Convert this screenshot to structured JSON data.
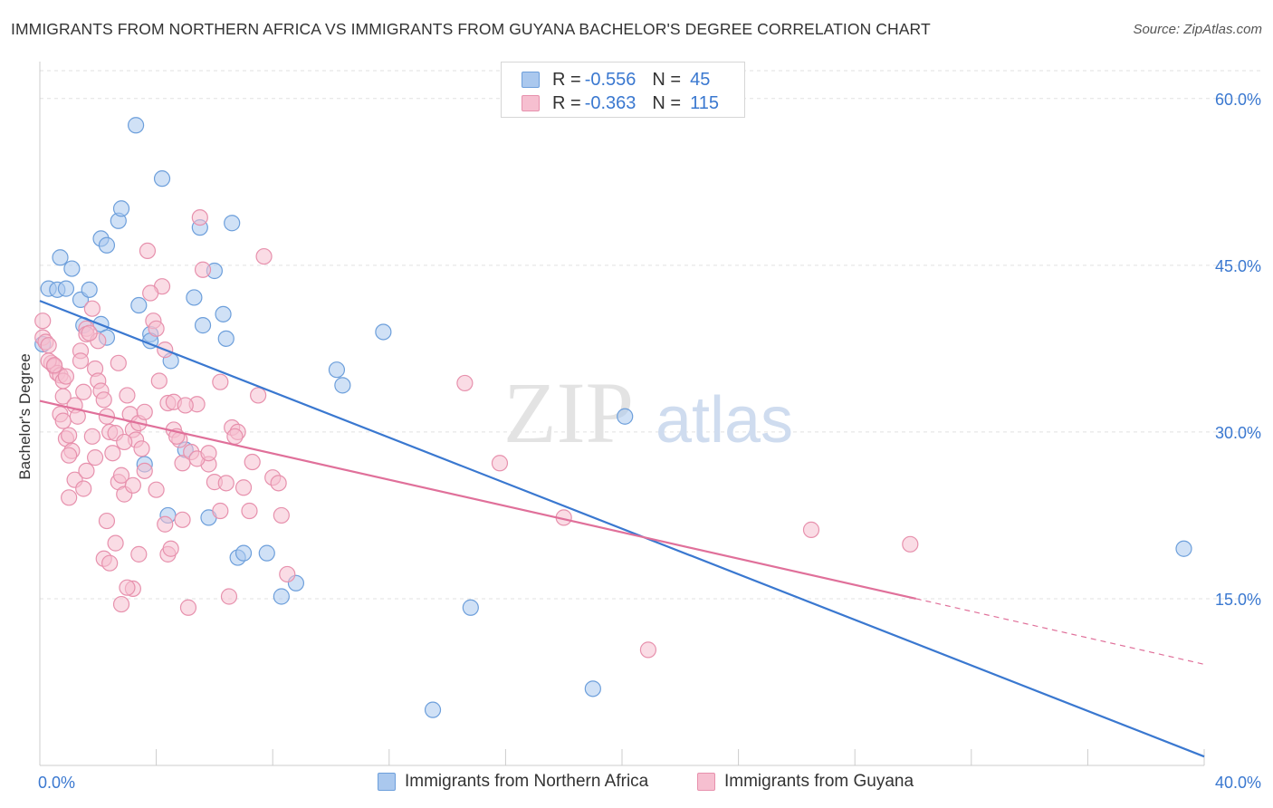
{
  "header": {
    "title": "IMMIGRANTS FROM NORTHERN AFRICA VS IMMIGRANTS FROM GUYANA BACHELOR'S DEGREE CORRELATION CHART",
    "source": "Source: ZipAtlas.com"
  },
  "watermark": {
    "zip": "ZIP",
    "atlas": "atlas"
  },
  "legend": {
    "r_label": "R =",
    "n_label": "N =",
    "rows": [
      {
        "r": "-0.556",
        "n": "45",
        "color": "#aac8ee",
        "border": "#6d9fdb"
      },
      {
        "r": "-0.363",
        "n": "115",
        "color": "#f6bfd0",
        "border": "#e791ad"
      }
    ]
  },
  "chart_data": {
    "type": "scatter",
    "title": "IMMIGRANTS FROM NORTHERN AFRICA VS IMMIGRANTS FROM GUYANA BACHELOR'S DEGREE CORRELATION CHART",
    "xlabel": "",
    "ylabel": "Bachelor's Degree",
    "xlim": [
      0,
      40
    ],
    "ylim": [
      0,
      63
    ],
    "x_tick_labels": [
      "0.0%",
      "40.0%"
    ],
    "y_ticks": [
      15,
      30,
      45,
      60
    ],
    "y_tick_labels": [
      "15.0%",
      "30.0%",
      "45.0%",
      "60.0%"
    ],
    "grid": true,
    "legend_position": "top-center",
    "series": [
      {
        "name": "Immigrants from Northern Africa",
        "color": "#6d9fdb",
        "fill": "#aac8ee",
        "line_color": "#3a78d0",
        "trend": {
          "x": [
            0,
            40
          ],
          "y": [
            41.8,
            0.8
          ]
        },
        "points": [
          [
            0.3,
            42.9
          ],
          [
            0.6,
            42.8
          ],
          [
            0.7,
            45.7
          ],
          [
            0.9,
            42.9
          ],
          [
            1.1,
            44.7
          ],
          [
            1.4,
            41.9
          ],
          [
            1.7,
            42.8
          ],
          [
            1.5,
            39.6
          ],
          [
            2.1,
            39.7
          ],
          [
            2.3,
            38.5
          ],
          [
            2.1,
            47.4
          ],
          [
            2.3,
            46.8
          ],
          [
            2.7,
            49.0
          ],
          [
            2.8,
            50.1
          ],
          [
            3.3,
            57.6
          ],
          [
            3.4,
            41.4
          ],
          [
            3.8,
            38.8
          ],
          [
            3.8,
            38.2
          ],
          [
            4.2,
            52.8
          ],
          [
            4.5,
            36.4
          ],
          [
            5.3,
            42.1
          ],
          [
            5.5,
            48.4
          ],
          [
            5.6,
            39.6
          ],
          [
            6.0,
            44.5
          ],
          [
            6.3,
            40.6
          ],
          [
            6.4,
            38.4
          ],
          [
            6.6,
            48.8
          ],
          [
            3.6,
            27.1
          ],
          [
            4.4,
            22.5
          ],
          [
            5.0,
            28.4
          ],
          [
            5.8,
            22.3
          ],
          [
            6.8,
            18.7
          ],
          [
            7.0,
            19.1
          ],
          [
            7.8,
            19.1
          ],
          [
            8.3,
            15.2
          ],
          [
            8.8,
            16.4
          ],
          [
            10.2,
            35.6
          ],
          [
            10.4,
            34.2
          ],
          [
            11.8,
            39.0
          ],
          [
            14.8,
            14.2
          ],
          [
            13.5,
            5.0
          ],
          [
            19.0,
            6.9
          ],
          [
            20.1,
            31.4
          ],
          [
            39.3,
            19.5
          ],
          [
            0.1,
            37.9
          ]
        ]
      },
      {
        "name": "Immigrants from Guyana",
        "color": "#e791ad",
        "fill": "#f6bfd0",
        "line_color": "#e0709a",
        "trend": {
          "x": [
            0,
            30.1
          ],
          "y": [
            32.8,
            15.0
          ]
        },
        "trend_dashed": {
          "x": [
            30.1,
            40
          ],
          "y": [
            15.0,
            9.1
          ]
        },
        "points": [
          [
            0.1,
            40.0
          ],
          [
            0.1,
            38.5
          ],
          [
            0.2,
            38.1
          ],
          [
            0.3,
            37.8
          ],
          [
            0.4,
            36.2
          ],
          [
            0.5,
            35.9
          ],
          [
            0.6,
            35.3
          ],
          [
            0.7,
            35.1
          ],
          [
            0.8,
            34.6
          ],
          [
            0.8,
            33.2
          ],
          [
            0.7,
            31.6
          ],
          [
            0.8,
            31.0
          ],
          [
            0.9,
            29.4
          ],
          [
            1.0,
            29.7
          ],
          [
            1.1,
            28.3
          ],
          [
            1.2,
            25.7
          ],
          [
            1.0,
            24.1
          ],
          [
            1.4,
            37.3
          ],
          [
            1.4,
            36.4
          ],
          [
            1.6,
            39.3
          ],
          [
            1.6,
            38.8
          ],
          [
            1.8,
            41.1
          ],
          [
            1.9,
            35.7
          ],
          [
            2.0,
            34.6
          ],
          [
            2.1,
            33.7
          ],
          [
            2.2,
            32.9
          ],
          [
            2.3,
            31.4
          ],
          [
            2.4,
            30.0
          ],
          [
            2.6,
            29.9
          ],
          [
            2.5,
            28.1
          ],
          [
            2.7,
            25.5
          ],
          [
            2.8,
            26.1
          ],
          [
            2.9,
            24.4
          ],
          [
            3.0,
            33.3
          ],
          [
            3.1,
            31.6
          ],
          [
            3.2,
            30.2
          ],
          [
            3.3,
            29.3
          ],
          [
            3.5,
            28.5
          ],
          [
            3.6,
            26.5
          ],
          [
            3.7,
            46.3
          ],
          [
            3.9,
            40.0
          ],
          [
            4.0,
            39.3
          ],
          [
            4.2,
            43.1
          ],
          [
            4.3,
            37.4
          ],
          [
            4.1,
            34.6
          ],
          [
            4.4,
            32.6
          ],
          [
            4.6,
            30.2
          ],
          [
            4.8,
            29.3
          ],
          [
            4.9,
            27.2
          ],
          [
            5.2,
            28.2
          ],
          [
            5.4,
            32.5
          ],
          [
            5.5,
            49.3
          ],
          [
            5.6,
            44.6
          ],
          [
            5.8,
            27.1
          ],
          [
            6.0,
            25.5
          ],
          [
            6.2,
            22.9
          ],
          [
            6.4,
            25.4
          ],
          [
            6.6,
            30.4
          ],
          [
            6.8,
            30.0
          ],
          [
            7.0,
            25.0
          ],
          [
            7.2,
            22.9
          ],
          [
            7.5,
            33.3
          ],
          [
            7.7,
            45.8
          ],
          [
            8.0,
            25.9
          ],
          [
            8.2,
            25.4
          ],
          [
            8.3,
            22.5
          ],
          [
            8.5,
            17.2
          ],
          [
            4.3,
            21.7
          ],
          [
            4.4,
            19.0
          ],
          [
            4.5,
            19.5
          ],
          [
            3.4,
            19.0
          ],
          [
            2.6,
            20.0
          ],
          [
            2.2,
            18.6
          ],
          [
            2.4,
            18.2
          ],
          [
            3.2,
            15.9
          ],
          [
            3.0,
            16.0
          ],
          [
            2.8,
            14.5
          ],
          [
            5.1,
            14.2
          ],
          [
            6.5,
            15.2
          ],
          [
            0.3,
            36.4
          ],
          [
            0.5,
            36.0
          ],
          [
            1.2,
            32.4
          ],
          [
            1.3,
            31.4
          ],
          [
            1.5,
            33.6
          ],
          [
            1.8,
            29.6
          ],
          [
            2.0,
            38.2
          ],
          [
            2.7,
            36.2
          ],
          [
            3.4,
            30.8
          ],
          [
            3.8,
            42.5
          ],
          [
            4.6,
            32.7
          ],
          [
            5.0,
            32.4
          ],
          [
            5.4,
            27.6
          ],
          [
            6.2,
            34.5
          ],
          [
            14.6,
            34.4
          ],
          [
            15.8,
            27.2
          ],
          [
            18.0,
            22.3
          ],
          [
            26.5,
            21.2
          ],
          [
            29.9,
            19.9
          ],
          [
            20.9,
            10.4
          ],
          [
            1.6,
            26.5
          ],
          [
            2.9,
            29.1
          ],
          [
            3.6,
            31.8
          ],
          [
            4.0,
            24.8
          ],
          [
            4.7,
            29.6
          ],
          [
            5.8,
            28.1
          ],
          [
            1.0,
            27.9
          ],
          [
            1.9,
            27.7
          ],
          [
            2.3,
            22.0
          ],
          [
            3.2,
            25.2
          ],
          [
            1.5,
            24.9
          ],
          [
            4.9,
            22.1
          ],
          [
            6.7,
            29.6
          ],
          [
            7.3,
            27.3
          ],
          [
            0.9,
            35.0
          ],
          [
            1.7,
            38.9
          ]
        ]
      }
    ]
  }
}
